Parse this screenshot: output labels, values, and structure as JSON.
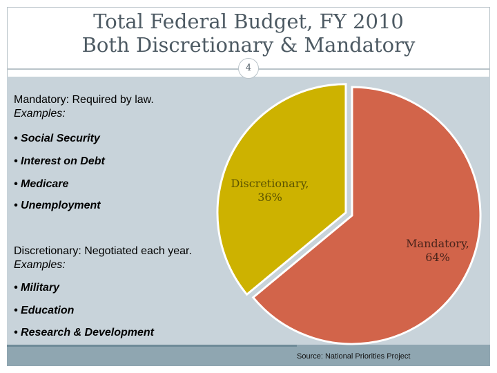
{
  "slide": {
    "title_line1": "Total Federal Budget, FY 2010",
    "title_line2": "Both Discretionary & Mandatory",
    "page_number": "4",
    "source": "Source:  National Priorities Project"
  },
  "left_text": {
    "mandatory_heading": "Mandatory:  Required by law.",
    "mandatory_examples_label": "Examples:",
    "mandatory_items": [
      "• Social Security",
      "• Interest on Debt",
      "• Medicare",
      "• Unemployment"
    ],
    "discretionary_heading": "Discretionary:  Negotiated each year.",
    "discretionary_examples_label": "Examples:",
    "discretionary_items": [
      "• Military",
      "• Education",
      "• Research & Development"
    ]
  },
  "chart_data": {
    "type": "pie",
    "title": "",
    "slices": [
      {
        "label_line1": "Discretionary,",
        "label_line2": "36%",
        "value": 36,
        "color": "#cdb200",
        "label_color": "#5c5400"
      },
      {
        "label_line1": "Mandatory,",
        "label_line2": "64%",
        "value": 64,
        "color": "#d2644a",
        "label_color": "#4a241b"
      }
    ]
  },
  "colors": {
    "content_bg": "#c8d3da",
    "footer_bg": "#8fa6b1",
    "title_text": "#4d5a63"
  }
}
